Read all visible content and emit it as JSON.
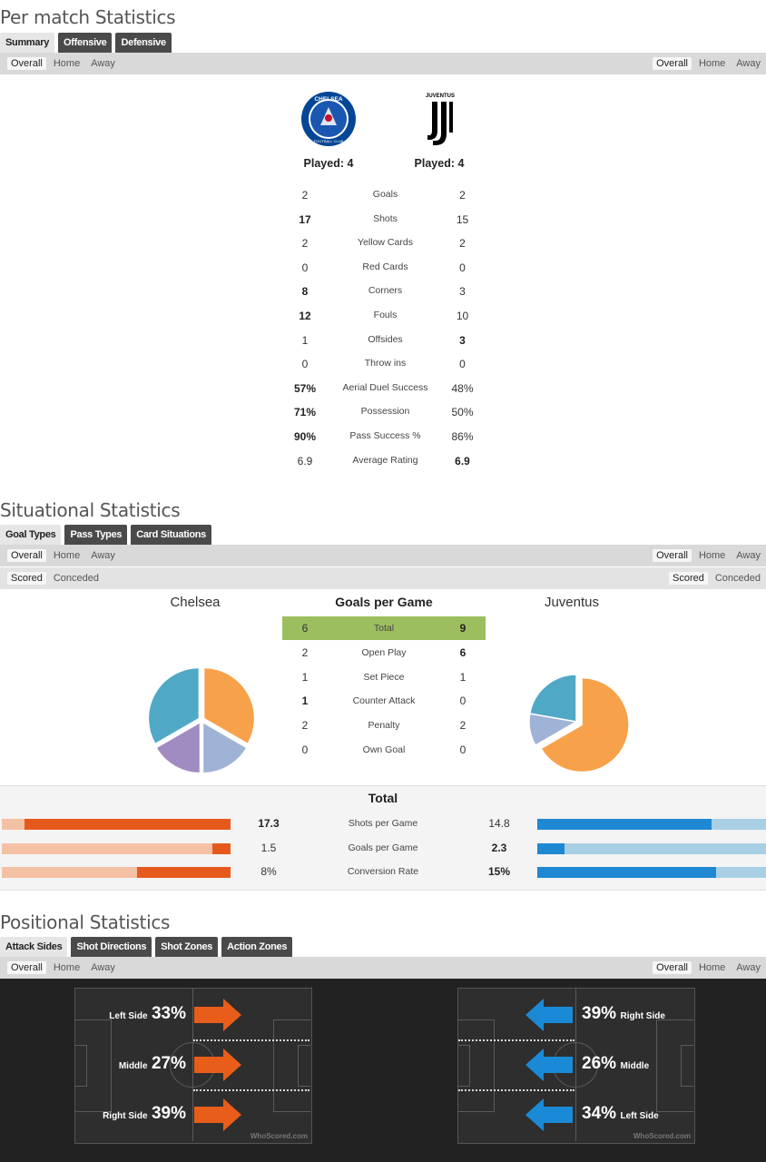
{
  "per_match": {
    "title": "Per match Statistics",
    "tabs": [
      "Summary",
      "Offensive",
      "Defensive"
    ],
    "filters_left": [
      "Overall",
      "Home",
      "Away"
    ],
    "filters_right": [
      "Overall",
      "Home",
      "Away"
    ],
    "home_played": "Played: 4",
    "away_played": "Played: 4",
    "rows": [
      {
        "home": "2",
        "label": "Goals",
        "away": "2",
        "hb": false,
        "ab": false
      },
      {
        "home": "17",
        "label": "Shots",
        "away": "15",
        "hb": true,
        "ab": false
      },
      {
        "home": "2",
        "label": "Yellow Cards",
        "away": "2",
        "hb": false,
        "ab": false
      },
      {
        "home": "0",
        "label": "Red Cards",
        "away": "0",
        "hb": false,
        "ab": false
      },
      {
        "home": "8",
        "label": "Corners",
        "away": "3",
        "hb": true,
        "ab": false
      },
      {
        "home": "12",
        "label": "Fouls",
        "away": "10",
        "hb": true,
        "ab": false
      },
      {
        "home": "1",
        "label": "Offsides",
        "away": "3",
        "hb": false,
        "ab": true
      },
      {
        "home": "0",
        "label": "Throw ins",
        "away": "0",
        "hb": false,
        "ab": false
      },
      {
        "home": "57%",
        "label": "Aerial Duel Success",
        "away": "48%",
        "hb": true,
        "ab": false
      },
      {
        "home": "71%",
        "label": "Possession",
        "away": "50%",
        "hb": true,
        "ab": false
      },
      {
        "home": "90%",
        "label": "Pass Success %",
        "away": "86%",
        "hb": true,
        "ab": false
      },
      {
        "home": "6.9",
        "label": "Average Rating",
        "away": "6.9",
        "hb": false,
        "ab": true
      }
    ],
    "home_badge_text": "CHELSEA",
    "home_badge_sub": "FOOTBALL CLUB",
    "away_badge_text": "JUVENTUS"
  },
  "situational": {
    "title": "Situational Statistics",
    "tabs": [
      "Goal Types",
      "Pass Types",
      "Card Situations"
    ],
    "filters_left": [
      "Overall",
      "Home",
      "Away"
    ],
    "filters_right": [
      "Overall",
      "Home",
      "Away"
    ],
    "filters2_left": [
      "Scored",
      "Conceded"
    ],
    "filters2_right": [
      "Scored",
      "Conceded"
    ],
    "home_team": "Chelsea",
    "away_team": "Juventus",
    "table_title": "Goals per Game",
    "rows": [
      {
        "home": "6",
        "label": "Total",
        "away": "9",
        "hb": false,
        "ab": true
      },
      {
        "home": "2",
        "label": "Open Play",
        "away": "6",
        "hb": false,
        "ab": true
      },
      {
        "home": "1",
        "label": "Set Piece",
        "away": "1",
        "hb": false,
        "ab": false
      },
      {
        "home": "1",
        "label": "Counter Attack",
        "away": "0",
        "hb": true,
        "ab": false
      },
      {
        "home": "2",
        "label": "Penalty",
        "away": "2",
        "hb": false,
        "ab": false
      },
      {
        "home": "0",
        "label": "Own Goal",
        "away": "0",
        "hb": false,
        "ab": false
      }
    ],
    "highlight_color": "#9dbe5f",
    "home_pie": [
      {
        "segment": "Open Play",
        "value": 2,
        "color": "#f7a24a",
        "explode": false
      },
      {
        "segment": "Set Piece",
        "value": 1,
        "color": "#9fb3d6",
        "explode": false
      },
      {
        "segment": "Counter Attack",
        "value": 1,
        "color": "#a08cc0",
        "explode": false
      },
      {
        "segment": "Penalty",
        "value": 2,
        "color": "#4fa9c6",
        "explode": false
      }
    ],
    "away_pie": [
      {
        "segment": "Open Play",
        "value": 6,
        "color": "#f7a24a",
        "explode": true
      },
      {
        "segment": "Set Piece",
        "value": 1,
        "color": "#9fb3d6",
        "explode": false
      },
      {
        "segment": "Penalty",
        "value": 2,
        "color": "#4fa9c6",
        "explode": false
      }
    ],
    "total": {
      "title": "Total",
      "rows": [
        {
          "home": "17.3",
          "label": "Shots per Game",
          "away": "14.8",
          "hb": true,
          "ab": false,
          "home_frac": 0.9,
          "away_frac": 0.76
        },
        {
          "home": "1.5",
          "label": "Goals per Game",
          "away": "2.3",
          "hb": false,
          "ab": true,
          "home_frac": 0.08,
          "away_frac": 0.12
        },
        {
          "home": "8%",
          "label": "Conversion Rate",
          "away": "15%",
          "hb": false,
          "ab": true,
          "home_frac": 0.41,
          "away_frac": 0.78
        }
      ],
      "home_color": "#e55a1c",
      "home_track": "#f5c1a5",
      "away_color": "#1e88d3",
      "away_track": "#a8cfe3"
    }
  },
  "positional": {
    "title": "Positional Statistics",
    "tabs": [
      "Attack Sides",
      "Shot Directions",
      "Shot Zones",
      "Action Zones"
    ],
    "filters_left": [
      "Overall",
      "Home",
      "Away"
    ],
    "filters_right": [
      "Overall",
      "Home",
      "Away"
    ],
    "home_zones": [
      {
        "name": "Left Side",
        "pct": "33%"
      },
      {
        "name": "Middle",
        "pct": "27%"
      },
      {
        "name": "Right Side",
        "pct": "39%"
      }
    ],
    "away_zones": [
      {
        "name": "Right Side",
        "pct": "39%"
      },
      {
        "name": "Middle",
        "pct": "26%"
      },
      {
        "name": "Left Side",
        "pct": "34%"
      }
    ],
    "watermark": "WhoScored.com",
    "home_arrow_color": "#e85d1a",
    "away_arrow_color": "#1b8ad6"
  }
}
